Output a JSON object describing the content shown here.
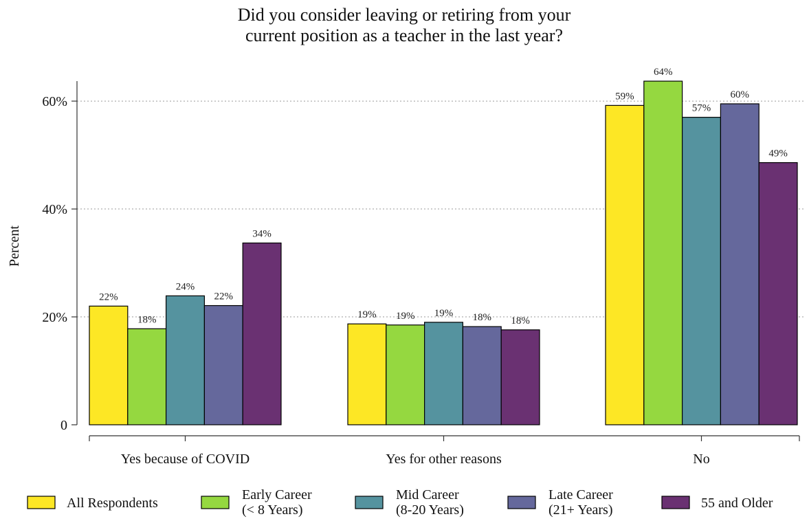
{
  "chart_data": {
    "type": "bar",
    "title": [
      "Did you consider leaving or retiring from your",
      "current position as a teacher in the last year?"
    ],
    "ylabel": "Percent",
    "xlabel": "",
    "ylim": [
      0,
      66
    ],
    "yticks": [
      {
        "value": 0,
        "label": "0"
      },
      {
        "value": 20,
        "label": "20%"
      },
      {
        "value": 40,
        "label": "40%"
      },
      {
        "value": 60,
        "label": "60%"
      }
    ],
    "grid": true,
    "legend_position": "bottom",
    "categories": [
      "Yes because of COVID",
      "Yes for other reasons",
      "No"
    ],
    "series": [
      {
        "name": [
          "All Respondents"
        ],
        "color": "#fde725",
        "values": [
          22,
          18.7,
          59.2
        ],
        "labels": [
          "22%",
          "19%",
          "59%"
        ]
      },
      {
        "name": [
          "Early Career",
          "(< 8 Years)"
        ],
        "color": "#95d840",
        "values": [
          17.8,
          18.5,
          63.7
        ],
        "labels": [
          "18%",
          "19%",
          "64%"
        ]
      },
      {
        "name": [
          "Mid Career",
          "(8-20 Years)"
        ],
        "color": "#55939f",
        "values": [
          23.9,
          19,
          57
        ],
        "labels": [
          "24%",
          "19%",
          "57%"
        ]
      },
      {
        "name": [
          "Late Career",
          "(21+ Years)"
        ],
        "color": "#65689c",
        "values": [
          22.1,
          18.2,
          59.5
        ],
        "labels": [
          "22%",
          "18%",
          "60%"
        ]
      },
      {
        "name": [
          "55 and Older"
        ],
        "color": "#6a3172",
        "values": [
          33.7,
          17.6,
          48.6
        ],
        "labels": [
          "34%",
          "18%",
          "49%"
        ]
      }
    ]
  }
}
